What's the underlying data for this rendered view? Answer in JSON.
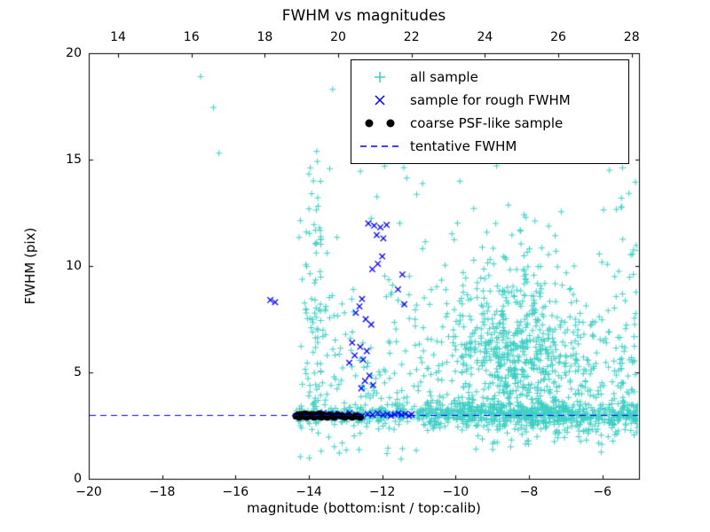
{
  "chart_data": {
    "type": "scatter",
    "title": "FWHM vs magnitudes",
    "xlabel": "magnitude (bottom:isnt / top:calib)",
    "ylabel": "FWHM (pix)",
    "xlim": [
      -20,
      -5
    ],
    "ylim": [
      0,
      20
    ],
    "grid": false,
    "background": "#ffffff",
    "x_ticks_bottom": {
      "values": [
        -20,
        -18,
        -16,
        -14,
        -12,
        -10,
        -8,
        -6
      ],
      "labels": [
        "−20",
        "−18",
        "−16",
        "−14",
        "−12",
        "−10",
        "−8",
        "−6"
      ]
    },
    "x_ticks_top": {
      "values": [
        14,
        16,
        18,
        20,
        22,
        24,
        26,
        28
      ],
      "labels": [
        "14",
        "16",
        "18",
        "20",
        "22",
        "24",
        "26",
        "28"
      ],
      "offset": 33.2
    },
    "y_ticks": {
      "values": [
        0,
        5,
        10,
        15,
        20
      ],
      "labels": [
        "0",
        "5",
        "10",
        "15",
        "20"
      ]
    },
    "tentative_fwhm": 3.0,
    "legend": {
      "position": "upper right",
      "entries": [
        {
          "label": "all sample",
          "marker": "plus",
          "color": "#3ecfc4"
        },
        {
          "label": "sample for rough FWHM",
          "marker": "x",
          "color": "#0000ff"
        },
        {
          "label": "coarse PSF-like sample",
          "marker": "dots",
          "color": "#000000"
        },
        {
          "label": "tentative FWHM",
          "marker": "dashed-line",
          "color": "#0000ff"
        }
      ]
    },
    "series": [
      {
        "name": "all sample",
        "marker": "plus",
        "color": "#3ecfc4",
        "points": [
          [
            -16.95,
            18.9
          ],
          [
            -16.6,
            17.45
          ],
          [
            -16.45,
            15.3
          ],
          [
            -13.35,
            18.3
          ],
          [
            -12.75,
            19.6
          ],
          [
            -12.5,
            19.2
          ],
          [
            -11.85,
            18.95
          ]
        ],
        "clusters": [
          {
            "count": 180,
            "x": [
              "uniform",
              -14.35,
              -11.0
            ],
            "y": [
              "gauss",
              3.0,
              0.22
            ]
          },
          {
            "count": 620,
            "x": [
              "uniform",
              -11.0,
              -4.95
            ],
            "y": [
              "gauss",
              3.0,
              0.3
            ]
          },
          {
            "count": 600,
            "x": [
              "gauss",
              -8.3,
              0.95
            ],
            "y": [
              "gauss",
              6.0,
              1.9
            ],
            "ymin": 3.0,
            "ymax": 12.5
          },
          {
            "count": 430,
            "x": [
              "uniform",
              -14.2,
              -5.0
            ],
            "y": [
              "exp",
              3.2,
              3.4
            ],
            "ymax": 19.7
          },
          {
            "count": 70,
            "x": [
              "gauss",
              -13.85,
              0.18
            ],
            "y": [
              "uniform",
              3.2,
              15.5
            ]
          },
          {
            "count": 90,
            "x": [
              "uniform",
              -9.5,
              -4.95
            ],
            "y": [
              "gauss",
              2.3,
              0.45
            ],
            "ymin": 0.8,
            "ymax": 3.0
          },
          {
            "count": 45,
            "x": [
              "uniform",
              -5.7,
              -4.9
            ],
            "y": [
              "exp",
              3.0,
              3.5
            ],
            "ymax": 15.5
          },
          {
            "count": 25,
            "x": [
              "uniform",
              -14.3,
              -11.0
            ],
            "y": [
              "uniform",
              0.9,
              2.7
            ]
          }
        ]
      },
      {
        "name": "sample for rough FWHM",
        "marker": "x",
        "color": "#0000ff",
        "points": [
          [
            -15.05,
            8.4
          ],
          [
            -14.92,
            8.3
          ],
          [
            -12.38,
            12.0
          ],
          [
            -12.22,
            11.9
          ],
          [
            -12.05,
            11.82
          ],
          [
            -11.88,
            11.93
          ],
          [
            -12.15,
            11.45
          ],
          [
            -11.97,
            11.3
          ],
          [
            -11.45,
            9.6
          ],
          [
            -11.57,
            8.9
          ],
          [
            -12.0,
            10.45
          ],
          [
            -12.12,
            10.1
          ],
          [
            -12.27,
            9.85
          ],
          [
            -12.55,
            8.45
          ],
          [
            -12.62,
            8.1
          ],
          [
            -12.72,
            7.8
          ],
          [
            -12.45,
            7.5
          ],
          [
            -12.3,
            7.25
          ],
          [
            -11.4,
            8.2
          ],
          [
            -12.82,
            6.4
          ],
          [
            -12.6,
            6.2
          ],
          [
            -12.42,
            6.0
          ],
          [
            -12.75,
            5.8
          ],
          [
            -12.52,
            5.6
          ],
          [
            -12.9,
            5.45
          ],
          [
            -12.35,
            4.85
          ],
          [
            -12.47,
            4.6
          ],
          [
            -12.25,
            4.4
          ],
          [
            -12.57,
            4.25
          ],
          [
            -13.6,
            3.1
          ],
          [
            -13.45,
            3.0
          ],
          [
            -13.3,
            3.06
          ],
          [
            -13.15,
            2.96
          ],
          [
            -13.02,
            3.02
          ],
          [
            -12.88,
            3.1
          ],
          [
            -12.72,
            3.0
          ],
          [
            -12.55,
            2.95
          ],
          [
            -12.4,
            3.05
          ],
          [
            -12.26,
            3.0
          ],
          [
            -12.12,
            3.08
          ],
          [
            -11.97,
            3.0
          ],
          [
            -11.86,
            3.05
          ],
          [
            -11.76,
            2.96
          ],
          [
            -11.66,
            3.02
          ],
          [
            -11.56,
            3.08
          ],
          [
            -11.47,
            3.0
          ],
          [
            -11.37,
            3.05
          ],
          [
            -11.27,
            2.96
          ],
          [
            -11.2,
            3.02
          ]
        ]
      },
      {
        "name": "coarse PSF-like sample",
        "marker": "dot",
        "color": "#000000",
        "points": [
          [
            -14.35,
            2.95
          ],
          [
            -14.3,
            3.0
          ],
          [
            -14.26,
            2.9
          ],
          [
            -14.21,
            3.02
          ],
          [
            -14.16,
            2.94
          ],
          [
            -14.11,
            3.05
          ],
          [
            -14.06,
            2.9
          ],
          [
            -14.01,
            3.0
          ],
          [
            -13.96,
            2.95
          ],
          [
            -13.91,
            3.02
          ],
          [
            -13.86,
            2.9
          ],
          [
            -13.81,
            3.0
          ],
          [
            -13.76,
            2.94
          ],
          [
            -13.71,
            3.04
          ],
          [
            -13.66,
            2.9
          ],
          [
            -13.61,
            3.0
          ],
          [
            -13.56,
            2.95
          ],
          [
            -13.5,
            2.9
          ],
          [
            -13.44,
            3.0
          ],
          [
            -13.38,
            2.94
          ],
          [
            -13.3,
            2.9
          ],
          [
            -13.21,
            3.0
          ],
          [
            -13.12,
            2.95
          ],
          [
            -13.02,
            2.9
          ],
          [
            -12.92,
            2.96
          ],
          [
            -12.82,
            2.9
          ],
          [
            -12.71,
            2.95
          ],
          [
            -12.6,
            2.9
          ]
        ]
      },
      {
        "name": "tentative FWHM",
        "marker": "dashed-line",
        "color": "#0000ff",
        "y": 3.0
      }
    ]
  }
}
